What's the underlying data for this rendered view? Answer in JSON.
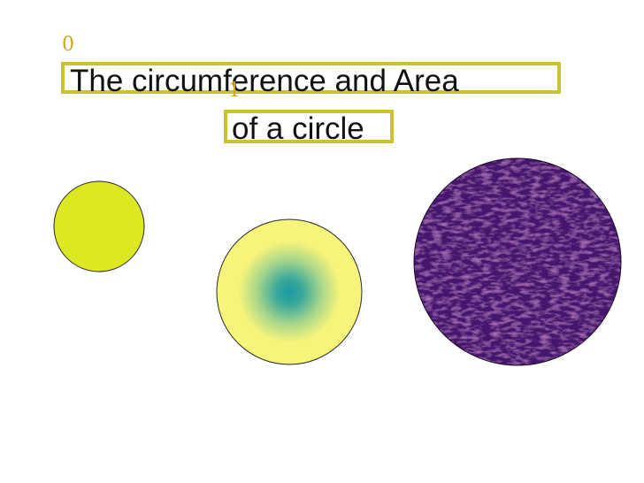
{
  "slide": {
    "title_lines": [
      "The circumference and Area",
      "of a circle"
    ],
    "box_indices": [
      "0",
      "1"
    ]
  },
  "circles": [
    {
      "name": "solid-yellow-circle",
      "fill": "#dde823"
    },
    {
      "name": "gradient-circle",
      "outer": "#f6f47a",
      "center": "#1a9aa3"
    },
    {
      "name": "textured-purple-circle",
      "fill": "#44166e"
    }
  ]
}
